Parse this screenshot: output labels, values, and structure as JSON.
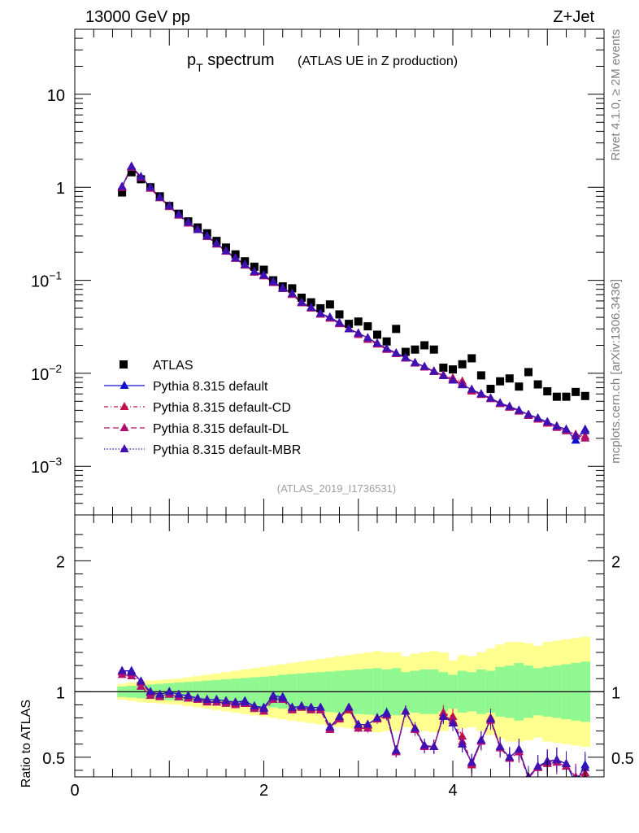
{
  "header": {
    "energy": "13000 GeV pp",
    "process": "Z+Jet"
  },
  "side_labels": {
    "rivet": "Rivet 4.1.0, ≥ 2M events",
    "mcplots": "mcplots.cern.ch [arXiv:1306.3436]"
  },
  "colors": {
    "atlas": "#000000",
    "default": "#1010d0",
    "cd": "#c0104a",
    "dl": "#b01070",
    "mbr": "#4010b0",
    "band_inner": "#90f890",
    "band_outer": "#ffff90"
  },
  "chart_data": [
    {
      "type": "scatter",
      "title_main": "p",
      "title_sub": "T",
      "title_rest": " spectrum",
      "title_paren": "(ATLAS UE in Z production)",
      "analysis_id": "(ATLAS_2019_I1736531)",
      "yscale": "log",
      "xlim": [
        0,
        5.6
      ],
      "ylim": [
        0.0003,
        50
      ],
      "y_tick_labels": [
        {
          "v": 0.001,
          "base": "10",
          "exp": "−3"
        },
        {
          "v": 0.01,
          "base": "10",
          "exp": "−2"
        },
        {
          "v": 0.1,
          "base": "10",
          "exp": "−1"
        },
        {
          "v": 1,
          "base": "1",
          "exp": ""
        },
        {
          "v": 10,
          "base": "10",
          "exp": ""
        }
      ],
      "x": [
        0.5,
        0.6,
        0.7,
        0.8,
        0.9,
        1.0,
        1.1,
        1.2,
        1.3,
        1.4,
        1.5,
        1.6,
        1.7,
        1.8,
        1.9,
        2.0,
        2.1,
        2.2,
        2.3,
        2.4,
        2.5,
        2.6,
        2.7,
        2.8,
        2.9,
        3.0,
        3.1,
        3.2,
        3.3,
        3.4,
        3.5,
        3.6,
        3.7,
        3.8,
        3.9,
        4.0,
        4.1,
        4.2,
        4.3,
        4.4,
        4.5,
        4.6,
        4.7,
        4.8,
        4.9,
        5.0,
        5.1,
        5.2,
        5.3,
        5.4
      ],
      "atlas": [
        0.88,
        1.45,
        1.22,
        1.0,
        0.8,
        0.63,
        0.52,
        0.43,
        0.37,
        0.32,
        0.265,
        0.225,
        0.19,
        0.16,
        0.14,
        0.13,
        0.1,
        0.086,
        0.082,
        0.065,
        0.058,
        0.05,
        0.055,
        0.043,
        0.034,
        0.036,
        0.032,
        0.026,
        0.022,
        0.03,
        0.017,
        0.018,
        0.02,
        0.018,
        0.0115,
        0.011,
        0.0125,
        0.0145,
        0.0095,
        0.0068,
        0.0082,
        0.0088,
        0.0072,
        0.0103,
        0.0076,
        0.0064,
        0.0056,
        0.0056,
        0.0063,
        0.0057
      ],
      "legend": [
        "ATLAS",
        "Pythia 8.315 default",
        "Pythia 8.315 default-CD",
        "Pythia 8.315 default-DL",
        "Pythia 8.315 default-MBR"
      ],
      "series": [
        {
          "name": "Pythia 8.315 default",
          "values": [
            1.01,
            1.68,
            1.3,
            1.0,
            0.78,
            0.63,
            0.51,
            0.42,
            0.35,
            0.3,
            0.248,
            0.208,
            0.174,
            0.148,
            0.124,
            0.114,
            0.097,
            0.083,
            0.072,
            0.058,
            0.051,
            0.044,
            0.04,
            0.035,
            0.03,
            0.027,
            0.024,
            0.021,
            0.0185,
            0.0165,
            0.0148,
            0.013,
            0.0118,
            0.0105,
            0.0094,
            0.0084,
            0.0075,
            0.0067,
            0.006,
            0.0054,
            0.0048,
            0.0044,
            0.004,
            0.0036,
            0.0033,
            0.003,
            0.0027,
            0.0025,
            0.0019,
            0.0025
          ]
        },
        {
          "name": "Pythia 8.315 default-CD",
          "values": [
            1.0,
            1.65,
            1.28,
            0.98,
            0.77,
            0.62,
            0.5,
            0.41,
            0.35,
            0.295,
            0.245,
            0.205,
            0.172,
            0.145,
            0.122,
            0.112,
            0.095,
            0.082,
            0.071,
            0.058,
            0.05,
            0.043,
            0.039,
            0.034,
            0.03,
            0.027,
            0.024,
            0.021,
            0.0182,
            0.0163,
            0.0146,
            0.0129,
            0.0117,
            0.0106,
            0.0096,
            0.0089,
            0.0082,
            0.0064,
            0.0059,
            0.0054,
            0.0047,
            0.0043,
            0.0039,
            0.0036,
            0.0032,
            0.0029,
            0.0027,
            0.0024,
            0.0022,
            0.0021
          ]
        },
        {
          "name": "Pythia 8.315 default-DL",
          "values": [
            0.99,
            1.63,
            1.27,
            0.97,
            0.77,
            0.62,
            0.5,
            0.41,
            0.35,
            0.294,
            0.244,
            0.204,
            0.171,
            0.145,
            0.122,
            0.111,
            0.094,
            0.081,
            0.07,
            0.057,
            0.05,
            0.043,
            0.039,
            0.034,
            0.03,
            0.026,
            0.023,
            0.0205,
            0.018,
            0.0162,
            0.0145,
            0.0128,
            0.0116,
            0.0104,
            0.0094,
            0.0086,
            0.0078,
            0.0066,
            0.0059,
            0.0053,
            0.0047,
            0.0043,
            0.0039,
            0.0035,
            0.0032,
            0.0029,
            0.0026,
            0.0024,
            0.0022,
            0.002
          ]
        },
        {
          "name": "Pythia 8.315 default-MBR",
          "values": [
            1.02,
            1.67,
            1.3,
            1.0,
            0.78,
            0.63,
            0.51,
            0.42,
            0.35,
            0.3,
            0.248,
            0.207,
            0.174,
            0.147,
            0.124,
            0.113,
            0.096,
            0.082,
            0.072,
            0.058,
            0.051,
            0.044,
            0.04,
            0.035,
            0.03,
            0.027,
            0.024,
            0.021,
            0.0185,
            0.0165,
            0.0147,
            0.013,
            0.0118,
            0.0105,
            0.0094,
            0.0084,
            0.0075,
            0.0067,
            0.006,
            0.0054,
            0.0048,
            0.0044,
            0.004,
            0.0036,
            0.0033,
            0.003,
            0.0027,
            0.0025,
            0.0021,
            0.0024
          ]
        }
      ]
    },
    {
      "type": "scatter",
      "ylabel": "Ratio to ATLAS",
      "xlim": [
        0,
        5.6
      ],
      "ylim": [
        0.35,
        2.35
      ],
      "x_tick_labels": [
        0,
        2,
        4
      ],
      "y_tick_labels": [
        0.5,
        1,
        2
      ],
      "x": [
        0.5,
        0.6,
        0.7,
        0.8,
        0.9,
        1.0,
        1.1,
        1.2,
        1.3,
        1.4,
        1.5,
        1.6,
        1.7,
        1.8,
        1.9,
        2.0,
        2.1,
        2.2,
        2.3,
        2.4,
        2.5,
        2.6,
        2.7,
        2.8,
        2.9,
        3.0,
        3.1,
        3.2,
        3.3,
        3.4,
        3.5,
        3.6,
        3.7,
        3.8,
        3.9,
        4.0,
        4.1,
        4.2,
        4.3,
        4.4,
        4.5,
        4.6,
        4.7,
        4.8,
        4.9,
        5.0,
        5.1,
        5.2,
        5.3,
        5.4
      ],
      "band_inner": [
        0.04,
        0.045,
        0.05,
        0.055,
        0.06,
        0.065,
        0.07,
        0.075,
        0.08,
        0.085,
        0.09,
        0.095,
        0.1,
        0.105,
        0.11,
        0.115,
        0.12,
        0.13,
        0.135,
        0.14,
        0.145,
        0.15,
        0.155,
        0.16,
        0.165,
        0.17,
        0.175,
        0.18,
        0.17,
        0.18,
        0.15,
        0.16,
        0.17,
        0.17,
        0.15,
        0.13,
        0.16,
        0.15,
        0.17,
        0.16,
        0.19,
        0.2,
        0.22,
        0.2,
        0.18,
        0.19,
        0.2,
        0.21,
        0.22,
        0.23
      ],
      "band_outer": [
        0.06,
        0.07,
        0.08,
        0.085,
        0.09,
        0.095,
        0.1,
        0.11,
        0.12,
        0.13,
        0.14,
        0.15,
        0.16,
        0.17,
        0.18,
        0.19,
        0.2,
        0.21,
        0.22,
        0.23,
        0.24,
        0.25,
        0.26,
        0.27,
        0.28,
        0.29,
        0.3,
        0.31,
        0.3,
        0.3,
        0.27,
        0.29,
        0.3,
        0.31,
        0.3,
        0.24,
        0.28,
        0.27,
        0.3,
        0.33,
        0.36,
        0.38,
        0.38,
        0.37,
        0.35,
        0.38,
        0.39,
        0.4,
        0.41,
        0.42
      ],
      "series": [
        {
          "name": "Pythia 8.315 default",
          "values": [
            1.16,
            1.16,
            1.08,
            1.0,
            0.98,
            1.0,
            0.98,
            0.97,
            0.95,
            0.94,
            0.94,
            0.93,
            0.92,
            0.93,
            0.89,
            0.88,
            0.97,
            0.96,
            0.88,
            0.89,
            0.88,
            0.88,
            0.73,
            0.81,
            0.88,
            0.75,
            0.75,
            0.8,
            0.84,
            0.55,
            0.85,
            0.72,
            0.59,
            0.58,
            0.82,
            0.76,
            0.6,
            0.46,
            0.63,
            0.79,
            0.58,
            0.5,
            0.56,
            0.35,
            0.43,
            0.47,
            0.48,
            0.45,
            0.3,
            0.44
          ]
        },
        {
          "name": "Pythia 8.315 default-CD",
          "values": [
            1.15,
            1.14,
            1.07,
            0.99,
            0.97,
            0.98,
            0.96,
            0.95,
            0.94,
            0.93,
            0.92,
            0.92,
            0.91,
            0.91,
            0.88,
            0.87,
            0.96,
            0.94,
            0.87,
            0.88,
            0.87,
            0.86,
            0.72,
            0.8,
            0.86,
            0.74,
            0.74,
            0.8,
            0.82,
            0.54,
            0.85,
            0.72,
            0.58,
            0.58,
            0.84,
            0.81,
            0.66,
            0.44,
            0.62,
            0.8,
            0.58,
            0.49,
            0.54,
            0.35,
            0.42,
            0.46,
            0.48,
            0.43,
            0.35,
            0.38
          ]
        },
        {
          "name": "Pythia 8.315 default-DL",
          "values": [
            1.13,
            1.12,
            1.04,
            0.97,
            0.96,
            0.98,
            0.96,
            0.95,
            0.94,
            0.92,
            0.92,
            0.91,
            0.9,
            0.91,
            0.87,
            0.85,
            0.94,
            0.94,
            0.86,
            0.88,
            0.86,
            0.86,
            0.71,
            0.79,
            0.88,
            0.72,
            0.72,
            0.79,
            0.82,
            0.54,
            0.85,
            0.71,
            0.58,
            0.58,
            0.82,
            0.78,
            0.62,
            0.45,
            0.62,
            0.78,
            0.57,
            0.49,
            0.54,
            0.34,
            0.42,
            0.45,
            0.46,
            0.43,
            0.35,
            0.35
          ]
        },
        {
          "name": "Pythia 8.315 default-MBR",
          "values": [
            1.16,
            1.15,
            1.08,
            1.0,
            0.98,
            1.0,
            0.98,
            0.97,
            0.95,
            0.94,
            0.94,
            0.93,
            0.92,
            0.92,
            0.89,
            0.87,
            0.96,
            0.95,
            0.88,
            0.89,
            0.88,
            0.88,
            0.73,
            0.81,
            0.88,
            0.75,
            0.75,
            0.8,
            0.83,
            0.55,
            0.85,
            0.72,
            0.59,
            0.58,
            0.81,
            0.76,
            0.6,
            0.46,
            0.63,
            0.79,
            0.58,
            0.5,
            0.56,
            0.35,
            0.43,
            0.47,
            0.48,
            0.45,
            0.33,
            0.42
          ]
        }
      ]
    }
  ]
}
